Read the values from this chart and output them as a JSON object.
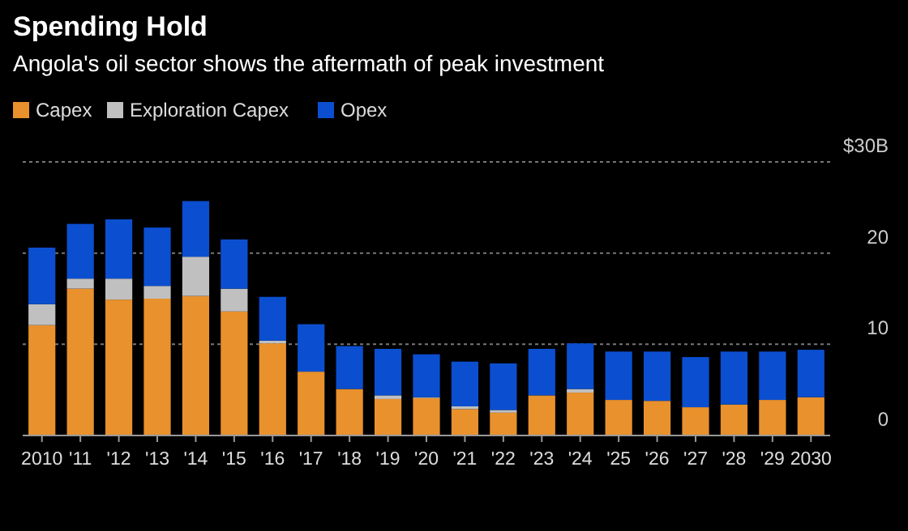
{
  "chart_data": {
    "type": "bar",
    "title": "Spending Hold",
    "subtitle": "Angola's oil sector shows the aftermath of peak investment",
    "categories": [
      "2010",
      "'11",
      "'12",
      "'13",
      "'14",
      "'15",
      "'16",
      "'17",
      "'18",
      "'19",
      "'20",
      "'21",
      "'22",
      "'23",
      "'24",
      "'25",
      "'26",
      "'27",
      "'28",
      "'29",
      "2030"
    ],
    "stacked": true,
    "series": [
      {
        "name": "Capex",
        "color": "#e8912d",
        "values": [
          12.1,
          16.1,
          14.9,
          15.0,
          15.3,
          13.6,
          10.1,
          7.0,
          5.1,
          4.0,
          4.1,
          2.9,
          2.5,
          4.4,
          4.7,
          3.9,
          3.8,
          3.1,
          3.4,
          3.9,
          4.2
        ]
      },
      {
        "name": "Exploration Capex",
        "color": "#c0c0c0",
        "values": [
          2.3,
          1.1,
          2.3,
          1.4,
          4.3,
          2.5,
          0.3,
          0,
          0,
          0.4,
          0.1,
          0.3,
          0.3,
          0,
          0.4,
          0,
          0,
          0,
          0,
          0,
          0
        ]
      },
      {
        "name": "Opex",
        "color": "#0b4fd0",
        "values": [
          6.2,
          6.0,
          6.5,
          6.4,
          6.1,
          5.4,
          4.8,
          5.2,
          4.7,
          5.1,
          4.7,
          4.9,
          5.1,
          5.1,
          5.0,
          5.3,
          5.4,
          5.5,
          5.8,
          5.3,
          5.2
        ]
      }
    ],
    "ylim": [
      0,
      30
    ],
    "yticks": [
      0,
      10,
      20,
      {
        "value": 30,
        "label": "$30B"
      }
    ],
    "grid": "y",
    "legend": "top left"
  }
}
